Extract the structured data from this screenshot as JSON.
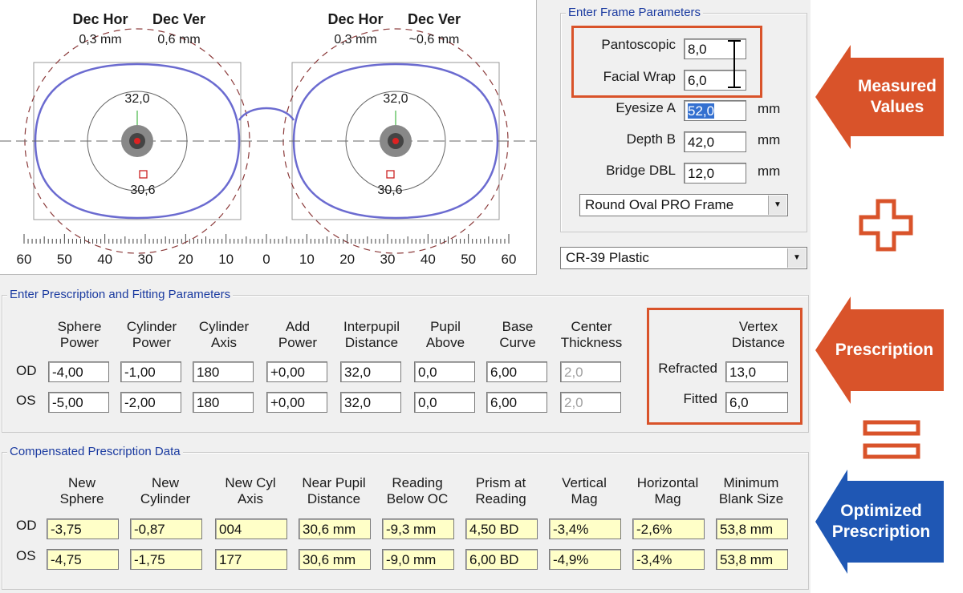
{
  "frame_view": {
    "dec_hor_label": "Dec Hor",
    "dec_ver_label": "Dec Ver",
    "right": {
      "dec_hor": "0,3 mm",
      "dec_ver": "0,6 mm",
      "top_value": "32,0",
      "bottom_value": "30,6"
    },
    "left": {
      "dec_hor": "0,3 mm",
      "dec_ver": "~0,6 mm",
      "top_value": "32,0",
      "bottom_value": "30,6"
    },
    "scale_labels": [
      "60",
      "50",
      "40",
      "30",
      "20",
      "10",
      "0",
      "10",
      "20",
      "30",
      "40",
      "50",
      "60"
    ]
  },
  "frame_params": {
    "title": "Enter Frame Parameters",
    "pantoscopic_label": "Pantoscopic",
    "pantoscopic": "8,0",
    "facial_wrap_label": "Facial Wrap",
    "facial_wrap": "6,0",
    "eyesize_label": "Eyesize A",
    "eyesize": "52,0",
    "depth_label": "Depth B",
    "depth": "42,0",
    "bridge_label": "Bridge DBL",
    "bridge": "12,0",
    "unit": "mm",
    "frame_type": "Round Oval PRO Frame"
  },
  "material": "CR-39 Plastic",
  "prescription": {
    "title": "Enter Prescription and Fitting Parameters",
    "headers": [
      [
        "Sphere",
        "Power"
      ],
      [
        "Cylinder",
        "Power"
      ],
      [
        "Cylinder",
        "Axis"
      ],
      [
        "Add",
        "Power"
      ],
      [
        "Interpupil",
        "Distance"
      ],
      [
        "Pupil",
        "Above"
      ],
      [
        "Base",
        "Curve"
      ],
      [
        "Center",
        "Thickness"
      ]
    ],
    "od_label": "OD",
    "os_label": "OS",
    "od": [
      "-4,00",
      "-1,00",
      "180",
      "+0,00",
      "32,0",
      "0,0",
      "6,00",
      "2,0"
    ],
    "os": [
      "-5,00",
      "-2,00",
      "180",
      "+0,00",
      "32,0",
      "0,0",
      "6,00",
      "2,0"
    ],
    "vertex_header": [
      "Vertex",
      "Distance"
    ],
    "refracted_label": "Refracted",
    "refracted": "13,0",
    "fitted_label": "Fitted",
    "fitted": "6,0"
  },
  "compensated": {
    "title": "Compensated Prescription Data",
    "headers": [
      [
        "New",
        "Sphere"
      ],
      [
        "New",
        "Cylinder"
      ],
      [
        "New Cyl",
        "Axis"
      ],
      [
        "Near Pupil",
        "Distance"
      ],
      [
        "Reading",
        "Below OC"
      ],
      [
        "Prism at",
        "Reading"
      ],
      [
        "Vertical",
        "Mag"
      ],
      [
        "Horizontal",
        "Mag"
      ],
      [
        "Minimum",
        "Blank Size"
      ]
    ],
    "od_label": "OD",
    "os_label": "OS",
    "od": [
      "-3,75",
      "-0,87",
      "004",
      "30,6 mm",
      "-9,3 mm",
      "4,50 BD",
      "-3,4%",
      "-2,6%",
      "53,8 mm"
    ],
    "os": [
      "-4,75",
      "-1,75",
      "177",
      "30,6 mm",
      "-9,0 mm",
      "6,00 BD",
      "-4,9%",
      "-3,4%",
      "53,8 mm"
    ]
  },
  "annotations": {
    "measured": [
      "Measured",
      "Values"
    ],
    "prescription": "Prescription",
    "optimized": [
      "Optimized",
      "Prescription"
    ],
    "plus_symbol": "plus-icon",
    "equals_symbol": "equals-icon",
    "orange": "#d9532a",
    "blue": "#1f57b4"
  }
}
